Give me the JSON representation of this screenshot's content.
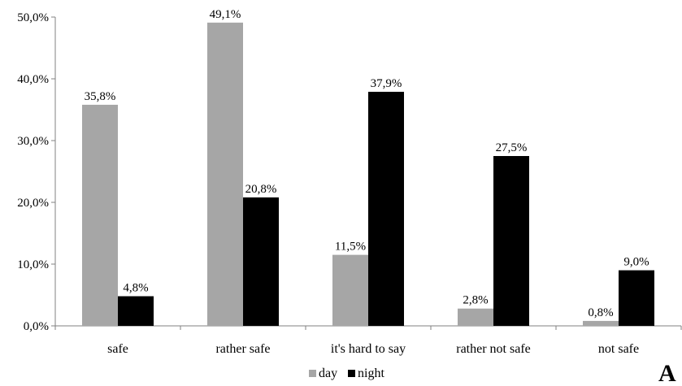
{
  "chart_data": {
    "type": "bar",
    "categories": [
      "safe",
      "rather safe",
      "it's hard to say",
      "rather not safe",
      "not safe"
    ],
    "series": [
      {
        "name": "day",
        "color": "#a6a6a6",
        "values": [
          35.8,
          49.1,
          11.5,
          2.8,
          0.8
        ],
        "labels": [
          "35,8%",
          "49,1%",
          "11,5%",
          "2,8%",
          "0,8%"
        ]
      },
      {
        "name": "night",
        "color": "#000000",
        "values": [
          4.8,
          20.8,
          37.9,
          27.5,
          9.0
        ],
        "labels": [
          "4,8%",
          "20,8%",
          "37,9%",
          "27,5%",
          "9,0%"
        ]
      }
    ],
    "ylim": [
      0,
      50
    ],
    "yticks": [
      {
        "value": 0,
        "label": "0,0%"
      },
      {
        "value": 10,
        "label": "10,0%"
      },
      {
        "value": 20,
        "label": "20,0%"
      },
      {
        "value": 30,
        "label": "30,0%"
      },
      {
        "value": 40,
        "label": "40,0%"
      },
      {
        "value": 50,
        "label": "50,0%"
      }
    ],
    "grid": false,
    "legend_position": "bottom",
    "panel_label": "A"
  }
}
